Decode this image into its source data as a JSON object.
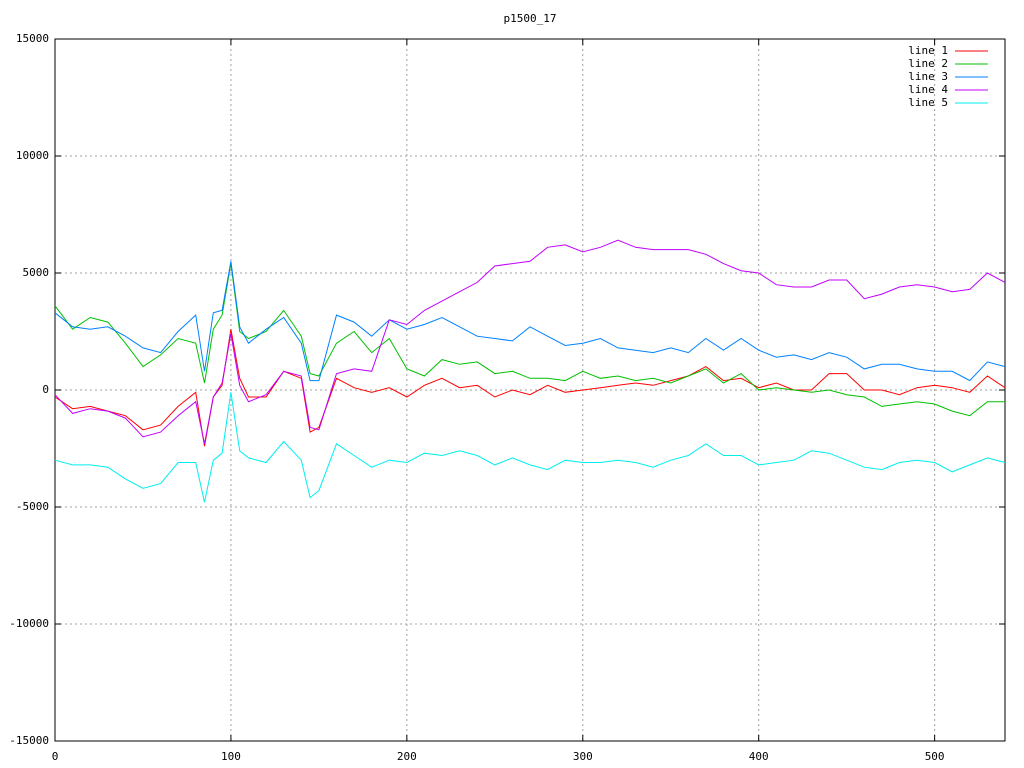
{
  "chart_data": {
    "type": "line",
    "title": "p1500_17",
    "x": [
      0,
      10,
      20,
      30,
      40,
      50,
      60,
      70,
      80,
      85,
      90,
      95,
      100,
      105,
      110,
      120,
      130,
      140,
      145,
      150,
      160,
      170,
      180,
      190,
      200,
      210,
      220,
      230,
      240,
      250,
      260,
      270,
      280,
      290,
      300,
      310,
      320,
      330,
      340,
      350,
      360,
      370,
      380,
      390,
      400,
      410,
      420,
      430,
      440,
      450,
      460,
      470,
      480,
      490,
      500,
      510,
      520,
      530,
      540
    ],
    "series": [
      {
        "name": "line 1",
        "color": "#ff0000",
        "values": [
          -300,
          -800,
          -700,
          -900,
          -1100,
          -1700,
          -1500,
          -700,
          -100,
          -2400,
          -300,
          200,
          2600,
          500,
          -300,
          -300,
          800,
          500,
          -1800,
          -1600,
          500,
          100,
          -100,
          100,
          -300,
          200,
          500,
          100,
          200,
          -300,
          0,
          -200,
          200,
          -100,
          0,
          100,
          200,
          300,
          200,
          400,
          600,
          1000,
          400,
          500,
          100,
          300,
          0,
          0,
          700,
          700,
          0,
          0,
          -200,
          100,
          200,
          100,
          -100,
          600,
          100
        ]
      },
      {
        "name": "line 2",
        "color": "#00c000",
        "values": [
          3600,
          2600,
          3100,
          2900,
          2000,
          1000,
          1500,
          2200,
          2000,
          300,
          2600,
          3200,
          5400,
          2500,
          2200,
          2500,
          3400,
          2300,
          700,
          600,
          2000,
          2500,
          1600,
          2200,
          900,
          600,
          1300,
          1100,
          1200,
          700,
          800,
          500,
          500,
          400,
          800,
          500,
          600,
          400,
          500,
          300,
          600,
          900,
          300,
          700,
          0,
          100,
          0,
          -100,
          0,
          -200,
          -300,
          -700,
          -600,
          -500,
          -600,
          -900,
          -1100,
          -500,
          -500
        ]
      },
      {
        "name": "line 3",
        "color": "#0080ff",
        "values": [
          3300,
          2700,
          2600,
          2700,
          2300,
          1800,
          1600,
          2500,
          3200,
          800,
          3300,
          3400,
          5500,
          2700,
          2000,
          2600,
          3100,
          2000,
          400,
          400,
          3200,
          2900,
          2300,
          3000,
          2600,
          2800,
          3100,
          2700,
          2300,
          2200,
          2100,
          2700,
          2300,
          1900,
          2000,
          2200,
          1800,
          1700,
          1600,
          1800,
          1600,
          2200,
          1700,
          2200,
          1700,
          1400,
          1500,
          1300,
          1600,
          1400,
          900,
          1100,
          1100,
          900,
          800,
          800,
          400,
          1200,
          1000
        ]
      },
      {
        "name": "line 4",
        "color": "#c000ff",
        "values": [
          -200,
          -1000,
          -800,
          -900,
          -1200,
          -2000,
          -1800,
          -1100,
          -500,
          -2300,
          -300,
          300,
          2400,
          200,
          -500,
          -200,
          800,
          600,
          -1600,
          -1700,
          700,
          900,
          800,
          3000,
          2800,
          3400,
          3800,
          4200,
          4600,
          5300,
          5400,
          5500,
          6100,
          6200,
          5900,
          6100,
          6400,
          6100,
          6000,
          6000,
          6000,
          5800,
          5400,
          5100,
          5000,
          4500,
          4400,
          4400,
          4700,
          4700,
          3900,
          4100,
          4400,
          4500,
          4400,
          4200,
          4300,
          5000,
          4600
        ]
      },
      {
        "name": "line 5",
        "color": "#00eeee",
        "values": [
          -3000,
          -3200,
          -3200,
          -3300,
          -3800,
          -4200,
          -4000,
          -3100,
          -3100,
          -4800,
          -3000,
          -2700,
          -100,
          -2600,
          -2900,
          -3100,
          -2200,
          -3000,
          -4600,
          -4300,
          -2300,
          -2800,
          -3300,
          -3000,
          -3100,
          -2700,
          -2800,
          -2600,
          -2800,
          -3200,
          -2900,
          -3200,
          -3400,
          -3000,
          -3100,
          -3100,
          -3000,
          -3100,
          -3300,
          -3000,
          -2800,
          -2300,
          -2800,
          -2800,
          -3200,
          -3100,
          -3000,
          -2600,
          -2700,
          -3000,
          -3300,
          -3400,
          -3100,
          -3000,
          -3100,
          -3500,
          -3200,
          -2900,
          -3100
        ]
      }
    ],
    "xlim": [
      0,
      540
    ],
    "xticks": [
      0,
      100,
      200,
      300,
      400,
      500
    ],
    "ylim": [
      -15000,
      15000
    ],
    "yticks": [
      -15000,
      -10000,
      -5000,
      0,
      5000,
      10000,
      15000
    ],
    "grid": true,
    "legend": "top-right"
  }
}
